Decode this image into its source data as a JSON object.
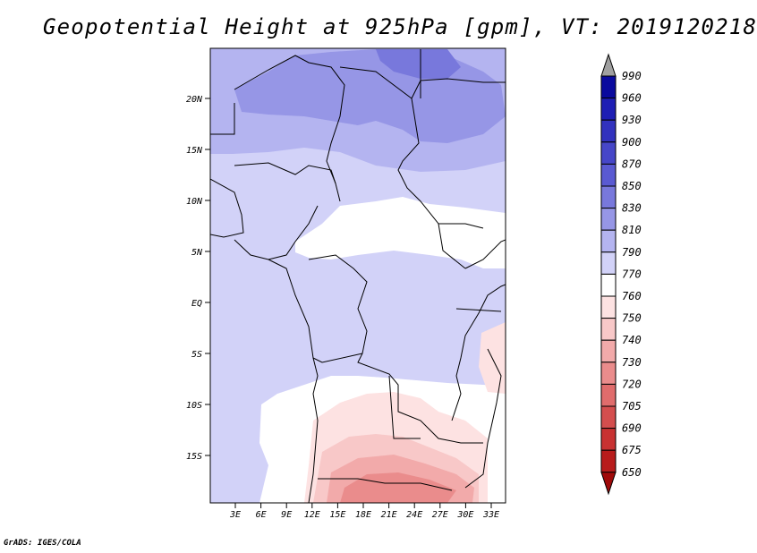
{
  "title": "Geopotential Height at 925hPa [gpm], VT: 2019120218",
  "footer": "GrADS: IGES/COLA",
  "map": {
    "lat_labels": [
      "20N",
      "15N",
      "10N",
      "5N",
      "EQ",
      "5S",
      "10S",
      "15S"
    ],
    "lon_labels": [
      "3E",
      "6E",
      "9E",
      "12E",
      "15E",
      "18E",
      "21E",
      "24E",
      "27E",
      "30E",
      "33E"
    ]
  },
  "colorbar": {
    "labels": [
      "990",
      "960",
      "930",
      "900",
      "870",
      "850",
      "830",
      "810",
      "790",
      "770",
      "760",
      "750",
      "740",
      "730",
      "720",
      "705",
      "690",
      "675",
      "650"
    ],
    "colors": [
      "#0a0a9e",
      "#1e1eb4",
      "#3232be",
      "#4646c8",
      "#5a5ad2",
      "#7878dc",
      "#9696e6",
      "#b4b4f0",
      "#d2d2f8",
      "#ffffff",
      "#fde2e2",
      "#f8c8c8",
      "#f2aaaa",
      "#ea8c8c",
      "#e06c6c",
      "#d44e4e",
      "#c83232",
      "#b81c1c",
      "#a00a0a"
    ],
    "top_arrow_color": "#a0a0a0"
  }
}
